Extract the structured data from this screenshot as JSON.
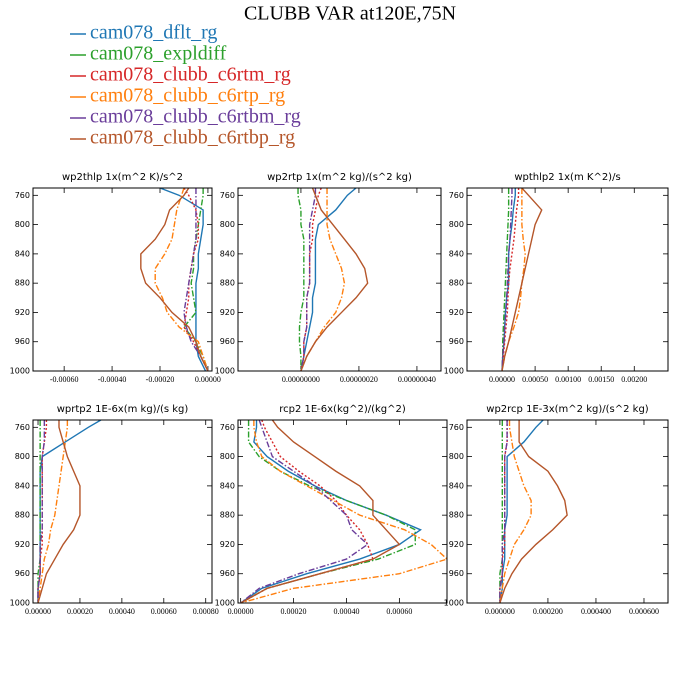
{
  "title": "CLUBB VAR at120E,75N",
  "chart_data": [
    {
      "type": "line",
      "title": "wp2thlp  1x(m^2 K)/s^2",
      "y": [
        750,
        760,
        780,
        800,
        820,
        840,
        860,
        880,
        900,
        920,
        940,
        960,
        980,
        1000
      ],
      "ylim": [
        1000,
        750
      ],
      "yticks": [
        760,
        800,
        840,
        880,
        920,
        960,
        1000
      ],
      "xlim": [
        -0.00073,
        1.7e-05
      ],
      "xticks": [
        {
          "value": -0.0006,
          "label": "-0.00060"
        },
        {
          "value": -0.0004,
          "label": "-0.00040"
        },
        {
          "value": -0.0002,
          "label": "-0.00020"
        },
        {
          "value": 0,
          "label": "0.00000"
        }
      ],
      "series": [
        {
          "name": "cam078_dflt_rg",
          "color": "#1f77b4",
          "dash": "solid",
          "values": [
            -0.0002,
            -0.00012,
            -2e-05,
            -2e-05,
            -3e-05,
            -4e-05,
            -4e-05,
            -5e-05,
            -5e-05,
            -5e-05,
            -5e-05,
            -5e-05,
            -4e-05,
            -1e-05
          ]
        },
        {
          "name": "cam078_expldiff",
          "color": "#2ca02c",
          "dash": "dashdot",
          "values": [
            -2e-05,
            -2e-05,
            -3e-05,
            -4e-05,
            -5e-05,
            -6e-05,
            -6e-05,
            -7e-05,
            -6e-05,
            -5e-05,
            -0.0001,
            -5e-05,
            -2e-05,
            0
          ]
        },
        {
          "name": "cam078_clubb_c6rtm_rg",
          "color": "#d62728",
          "dash": "dot",
          "values": [
            -0.0001,
            -8e-05,
            -5e-05,
            -4e-05,
            -4e-05,
            -6e-05,
            -7e-05,
            -8e-05,
            -8e-05,
            -9e-05,
            -0.0001,
            -6e-05,
            -3e-05,
            0
          ]
        },
        {
          "name": "cam078_clubb_c6rtp_rg",
          "color": "#ff7f0e",
          "dash": "dashdot",
          "values": [
            -0.0001,
            -0.00011,
            -0.00013,
            -0.00014,
            -0.00015,
            -0.00018,
            -0.00022,
            -0.00022,
            -0.00019,
            -0.00017,
            -0.00012,
            -4e-05,
            -2e-05,
            0
          ]
        },
        {
          "name": "cam078_clubb_c6rtbm_rg",
          "color": "#6a3d9a",
          "dash": "dashdot",
          "values": [
            -5e-05,
            -5e-05,
            -5e-05,
            -5e-05,
            -5e-05,
            -6e-05,
            -7e-05,
            -8e-05,
            -9e-05,
            -0.0001,
            -9e-05,
            -7e-05,
            -3e-05,
            0
          ]
        },
        {
          "name": "cam078_clubb_c6rtbp_rg",
          "color": "#b5562a",
          "dash": "solid",
          "values": [
            -8e-05,
            -0.0001,
            -0.00016,
            -0.00018,
            -0.00022,
            -0.00028,
            -0.00028,
            -0.00026,
            -0.0002,
            -0.00015,
            -8e-05,
            -5e-05,
            -3e-05,
            0
          ]
        }
      ]
    },
    {
      "type": "line",
      "title": "wp2rtp  1x(m^2 kg)/(s^2 kg)",
      "y": [
        750,
        760,
        780,
        800,
        820,
        840,
        860,
        880,
        900,
        920,
        940,
        960,
        980,
        1000
      ],
      "ylim": [
        1000,
        750
      ],
      "yticks": [
        760,
        800,
        840,
        880,
        920,
        960,
        1000
      ],
      "xlim": [
        -2.17e-07,
        4.83e-07
      ],
      "xticks": [
        {
          "value": 0,
          "label": "0.00000000"
        },
        {
          "value": 2e-07,
          "label": "0.00000020"
        },
        {
          "value": 4e-07,
          "label": "0.00000040"
        }
      ],
      "series": [
        {
          "color": "#1f77b4",
          "dash": "solid",
          "values": [
            1.9e-07,
            1.6e-07,
            1.2e-07,
            6e-08,
            5e-08,
            5e-08,
            5e-08,
            5e-08,
            4e-08,
            4e-08,
            3e-08,
            2e-08,
            1e-08,
            0
          ]
        },
        {
          "color": "#2ca02c",
          "dash": "dashdot",
          "values": [
            -1e-08,
            -1e-08,
            0,
            0,
            1e-08,
            1e-08,
            1e-08,
            1e-08,
            1e-08,
            0,
            -5e-09,
            -5e-09,
            0,
            0
          ]
        },
        {
          "color": "#d62728",
          "dash": "dot",
          "values": [
            7e-08,
            6e-08,
            5e-08,
            4e-08,
            4e-08,
            3e-08,
            3e-08,
            3e-08,
            2e-08,
            2e-08,
            2e-08,
            1e-08,
            1e-08,
            0
          ]
        },
        {
          "color": "#ff7f0e",
          "dash": "dashdot",
          "values": [
            9e-08,
            9e-08,
            9e-08,
            9e-08,
            1e-07,
            1.2e-07,
            1.4e-07,
            1.5e-07,
            1.4e-07,
            1.2e-07,
            8e-08,
            5e-08,
            2e-08,
            0
          ]
        },
        {
          "color": "#6a3d9a",
          "dash": "dashdot",
          "values": [
            5e-08,
            5e-08,
            4e-08,
            3e-08,
            3e-08,
            3e-08,
            3e-08,
            3e-08,
            2e-08,
            2e-08,
            2e-08,
            1e-08,
            1e-08,
            0
          ]
        },
        {
          "color": "#b5562a",
          "dash": "solid",
          "values": [
            4e-08,
            5e-08,
            7e-08,
            1.1e-07,
            1.5e-07,
            1.9e-07,
            2.2e-07,
            2.3e-07,
            1.9e-07,
            1.4e-07,
            9e-08,
            5e-08,
            2e-08,
            0
          ]
        }
      ]
    },
    {
      "type": "line",
      "title": "wpthlp2  1x(m K^2)/s",
      "y": [
        750,
        760,
        780,
        800,
        820,
        840,
        860,
        880,
        900,
        920,
        940,
        960,
        980,
        1000
      ],
      "ylim": [
        1000,
        750
      ],
      "yticks": [
        760,
        800,
        840,
        880,
        920,
        960,
        1000
      ],
      "xlim": [
        -0.00053,
        0.00251
      ],
      "xticks": [
        {
          "value": 0,
          "label": "0.00000"
        },
        {
          "value": 0.0005,
          "label": "0.00050"
        },
        {
          "value": 0.001,
          "label": "0.00100"
        },
        {
          "value": 0.0015,
          "label": "0.00150"
        },
        {
          "value": 0.002,
          "label": "0.00200"
        }
      ],
      "series": [
        {
          "color": "#1f77b4",
          "dash": "solid",
          "values": [
            0.0002,
            0.0002,
            0.00017,
            0.00015,
            0.00012,
            0.0001,
            0.0001,
            0.0001,
            7e-05,
            5e-05,
            4e-05,
            3e-05,
            1e-05,
            0
          ]
        },
        {
          "color": "#2ca02c",
          "dash": "dashdot",
          "values": [
            0.0001,
            0.0001,
            0.0001,
            9e-05,
            8e-05,
            7e-05,
            6e-05,
            5e-05,
            4e-05,
            3e-05,
            2e-05,
            1e-05,
            1e-05,
            0
          ]
        },
        {
          "color": "#d62728",
          "dash": "dot",
          "values": [
            0.00025,
            0.00025,
            0.00022,
            0.0002,
            0.00018,
            0.00015,
            0.00012,
            0.0001,
            9e-05,
            8e-05,
            6e-05,
            4e-05,
            2e-05,
            0
          ]
        },
        {
          "color": "#ff7f0e",
          "dash": "dashdot",
          "values": [
            0.0003,
            0.0003,
            0.0003,
            0.0003,
            0.00032,
            0.00035,
            0.00033,
            0.0003,
            0.00028,
            0.00025,
            0.00018,
            0.0001,
            4e-05,
            0
          ]
        },
        {
          "color": "#6a3d9a",
          "dash": "dashdot",
          "values": [
            0.00015,
            0.00015,
            0.00014,
            0.00013,
            0.00012,
            0.0001,
            9e-05,
            8e-05,
            7e-05,
            6e-05,
            4e-05,
            3e-05,
            1e-05,
            0
          ]
        },
        {
          "color": "#b5562a",
          "dash": "solid",
          "values": [
            0.0003,
            0.0004,
            0.0006,
            0.0005,
            0.00045,
            0.0004,
            0.00035,
            0.0003,
            0.00025,
            0.0002,
            0.00015,
            0.0001,
            4e-05,
            0
          ]
        }
      ]
    },
    {
      "type": "line",
      "title": "wprtp2  1E-6x(m kg)/(s kg)",
      "y": [
        750,
        760,
        780,
        800,
        820,
        840,
        860,
        880,
        900,
        920,
        940,
        960,
        980,
        1000
      ],
      "ylim": [
        1000,
        750
      ],
      "yticks": [
        760,
        800,
        840,
        880,
        920,
        960,
        1000
      ],
      "xlim": [
        -2.4e-05,
        0.00083
      ],
      "xticks": [
        {
          "value": 0,
          "label": "0.00000"
        },
        {
          "value": 0.0002,
          "label": "0.00020"
        },
        {
          "value": 0.0004,
          "label": "0.00040"
        },
        {
          "value": 0.0006,
          "label": "0.00060"
        },
        {
          "value": 0.0008,
          "label": "0.00080"
        }
      ],
      "series": [
        {
          "color": "#1f77b4",
          "dash": "solid",
          "values": [
            0.0003,
            0.00024,
            0.00013,
            2e-05,
            1e-05,
            1e-05,
            1e-05,
            1e-05,
            1e-05,
            1e-05,
            1e-05,
            1e-05,
            0,
            0
          ]
        },
        {
          "color": "#2ca02c",
          "dash": "dashdot",
          "values": [
            1e-05,
            1e-05,
            1e-05,
            1e-05,
            1e-05,
            1e-05,
            1e-05,
            1e-05,
            1e-05,
            1e-05,
            1e-05,
            0,
            0,
            0
          ]
        },
        {
          "color": "#d62728",
          "dash": "dot",
          "values": [
            4e-05,
            4e-05,
            3e-05,
            2e-05,
            2e-05,
            2e-05,
            2e-05,
            2e-05,
            2e-05,
            2e-05,
            1e-05,
            1e-05,
            0,
            0
          ]
        },
        {
          "color": "#ff7f0e",
          "dash": "dashdot",
          "values": [
            0.00014,
            0.00014,
            0.00013,
            0.00012,
            0.00011,
            0.0001,
            9e-05,
            8e-05,
            6e-05,
            5e-05,
            3e-05,
            2e-05,
            1e-05,
            0
          ]
        },
        {
          "color": "#6a3d9a",
          "dash": "dashdot",
          "values": [
            3e-05,
            3e-05,
            3e-05,
            2e-05,
            2e-05,
            2e-05,
            2e-05,
            2e-05,
            2e-05,
            1e-05,
            1e-05,
            1e-05,
            0,
            0
          ]
        },
        {
          "color": "#b5562a",
          "dash": "solid",
          "values": [
            0.0001,
            0.0001,
            0.00012,
            0.00014,
            0.00017,
            0.0002,
            0.0002,
            0.0002,
            0.00017,
            0.00012,
            8e-05,
            4e-05,
            2e-05,
            0
          ]
        }
      ]
    },
    {
      "type": "line",
      "title": "rcp2  1E-6x(kg^2)/(kg^2)",
      "y": [
        750,
        760,
        780,
        800,
        820,
        840,
        860,
        880,
        900,
        920,
        940,
        960,
        980,
        1000
      ],
      "ylim": [
        1000,
        750
      ],
      "yticks": [
        760,
        800,
        840,
        880,
        920,
        960,
        1000
      ],
      "xlim": [
        -1e-05,
        0.00078
      ],
      "xticks": [
        {
          "value": 0,
          "label": "0.00000"
        },
        {
          "value": 0.0002,
          "label": "0.00020"
        },
        {
          "value": 0.0004,
          "label": "0.00040"
        },
        {
          "value": 0.0006,
          "label": "0.00060"
        }
      ],
      "series": [
        {
          "color": "#1f77b4",
          "dash": "solid",
          "values": [
            6e-05,
            6e-05,
            5e-05,
            0.0001,
            0.00018,
            0.00028,
            0.0004,
            0.00055,
            0.00068,
            0.0006,
            0.00045,
            0.00025,
            8e-05,
            0
          ]
        },
        {
          "color": "#2ca02c",
          "dash": "dashdot",
          "values": [
            3e-05,
            3e-05,
            3e-05,
            7e-05,
            0.00015,
            0.00026,
            0.0004,
            0.00055,
            0.00066,
            0.00066,
            0.00052,
            0.0003,
            0.0001,
            0
          ]
        },
        {
          "color": "#d62728",
          "dash": "dot",
          "values": [
            8e-05,
            9e-05,
            0.00012,
            0.00015,
            0.00022,
            0.0003,
            0.00036,
            0.0004,
            0.00045,
            0.00048,
            0.0005,
            0.0003,
            0.0001,
            0
          ]
        },
        {
          "color": "#ff7f0e",
          "dash": "dashdot",
          "values": [
            5e-05,
            5e-05,
            6e-05,
            8e-05,
            0.00015,
            0.00025,
            0.00035,
            0.00045,
            0.00062,
            0.00072,
            0.00078,
            0.0006,
            0.0002,
            0
          ]
        },
        {
          "color": "#6a3d9a",
          "dash": "dashdot",
          "values": [
            7e-05,
            8e-05,
            0.0001,
            0.00012,
            0.0002,
            0.00028,
            0.00034,
            0.0004,
            0.00042,
            0.00048,
            0.0004,
            0.00022,
            7e-05,
            0
          ]
        },
        {
          "color": "#b5562a",
          "dash": "solid",
          "values": [
            0.00012,
            0.00014,
            0.0002,
            0.00028,
            0.00036,
            0.00045,
            0.0005,
            0.0005,
            0.00055,
            0.0006,
            0.0005,
            0.0003,
            0.0001,
            0
          ]
        }
      ]
    },
    {
      "type": "line",
      "title": "wp2rcp  1E-3x(m^2 kg)/(s^2 kg)",
      "y": [
        750,
        760,
        780,
        800,
        820,
        840,
        860,
        880,
        900,
        920,
        940,
        960,
        980,
        1000
      ],
      "ylim": [
        1000,
        750
      ],
      "yticks": [
        760,
        800,
        840,
        880,
        920,
        960,
        1000
      ],
      "xlim": [
        -0.000137,
        0.0007
      ],
      "xticks": [
        {
          "value": 0,
          "label": "0.000000"
        },
        {
          "value": 0.0002,
          "label": "0.000200"
        },
        {
          "value": 0.0004,
          "label": "0.000400"
        },
        {
          "value": 0.0006,
          "label": "0.000600"
        }
      ],
      "series": [
        {
          "color": "#1f77b4",
          "dash": "solid",
          "values": [
            0.00018,
            0.00015,
            0.0001,
            3e-05,
            3e-05,
            3e-05,
            3e-05,
            3e-05,
            2e-05,
            2e-05,
            2e-05,
            1e-05,
            1e-05,
            0
          ]
        },
        {
          "color": "#2ca02c",
          "dash": "dashdot",
          "values": [
            1e-05,
            1e-05,
            1e-05,
            1e-05,
            1e-05,
            1e-05,
            1e-05,
            1e-05,
            1e-05,
            1e-05,
            1e-05,
            0,
            0,
            0
          ]
        },
        {
          "color": "#d62728",
          "dash": "dot",
          "values": [
            3e-05,
            3e-05,
            3e-05,
            2e-05,
            2e-05,
            2e-05,
            2e-05,
            2e-05,
            2e-05,
            2e-05,
            1e-05,
            1e-05,
            0,
            0
          ]
        },
        {
          "color": "#ff7f0e",
          "dash": "dashdot",
          "values": [
            4e-05,
            4e-05,
            5e-05,
            6e-05,
            8e-05,
            0.0001,
            0.00013,
            0.00013,
            0.0001,
            6e-05,
            4e-05,
            2e-05,
            1e-05,
            0
          ]
        },
        {
          "color": "#6a3d9a",
          "dash": "dashdot",
          "values": [
            3e-05,
            3e-05,
            3e-05,
            2e-05,
            2e-05,
            2e-05,
            2e-05,
            2e-05,
            2e-05,
            1e-05,
            1e-05,
            1e-05,
            0,
            0
          ]
        },
        {
          "color": "#b5562a",
          "dash": "solid",
          "values": [
            8e-05,
            8e-05,
            8e-05,
            0.00012,
            0.0002,
            0.00024,
            0.00027,
            0.00028,
            0.00022,
            0.00015,
            9e-05,
            5e-05,
            2e-05,
            0
          ]
        }
      ]
    }
  ]
}
